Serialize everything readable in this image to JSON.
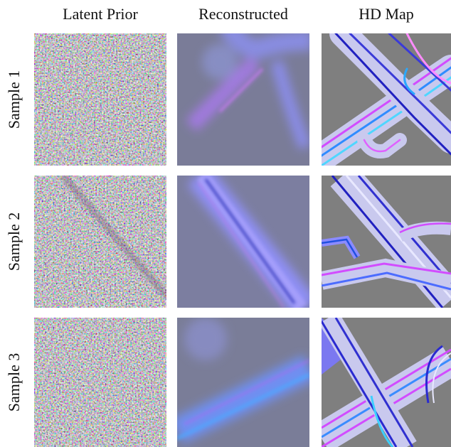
{
  "columns": [
    "Latent Prior",
    "Reconstructed",
    "HD Map"
  ],
  "rows": [
    "Sample 1",
    "Sample 2",
    "Sample 3"
  ]
}
